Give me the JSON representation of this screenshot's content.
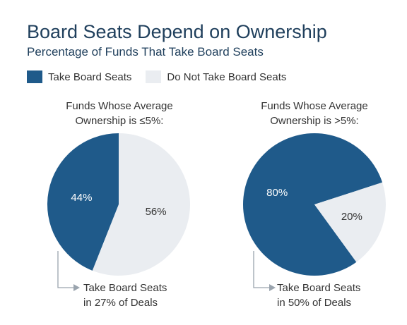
{
  "title": "Board Seats Depend on Ownership",
  "subtitle": "Percentage of Funds That Take Board Seats",
  "colors": {
    "take": "#1f5a8a",
    "do_not_take": "#eaedf1",
    "connector": "#9aa4ae"
  },
  "legend": [
    "Take Board Seats",
    "Do Not Take Board Seats"
  ],
  "chart_data": [
    {
      "type": "pie",
      "title_line1": "Funds Whose Average",
      "title_line2": "Ownership is ≤5%:",
      "labels": [
        "Take Board Seats",
        "Do Not Take Board Seats"
      ],
      "values": [
        44,
        56
      ],
      "value_labels": [
        "44%",
        "56%"
      ],
      "note_line1": "Take Board Seats",
      "note_line2": "in 27% of Deals"
    },
    {
      "type": "pie",
      "title_line1": "Funds Whose Average",
      "title_line2": "Ownership is >5%:",
      "labels": [
        "Take Board Seats",
        "Do Not Take Board Seats"
      ],
      "values": [
        80,
        20
      ],
      "value_labels": [
        "80%",
        "20%"
      ],
      "note_line1": "Take Board Seats",
      "note_line2": "in 50% of Deals"
    }
  ]
}
